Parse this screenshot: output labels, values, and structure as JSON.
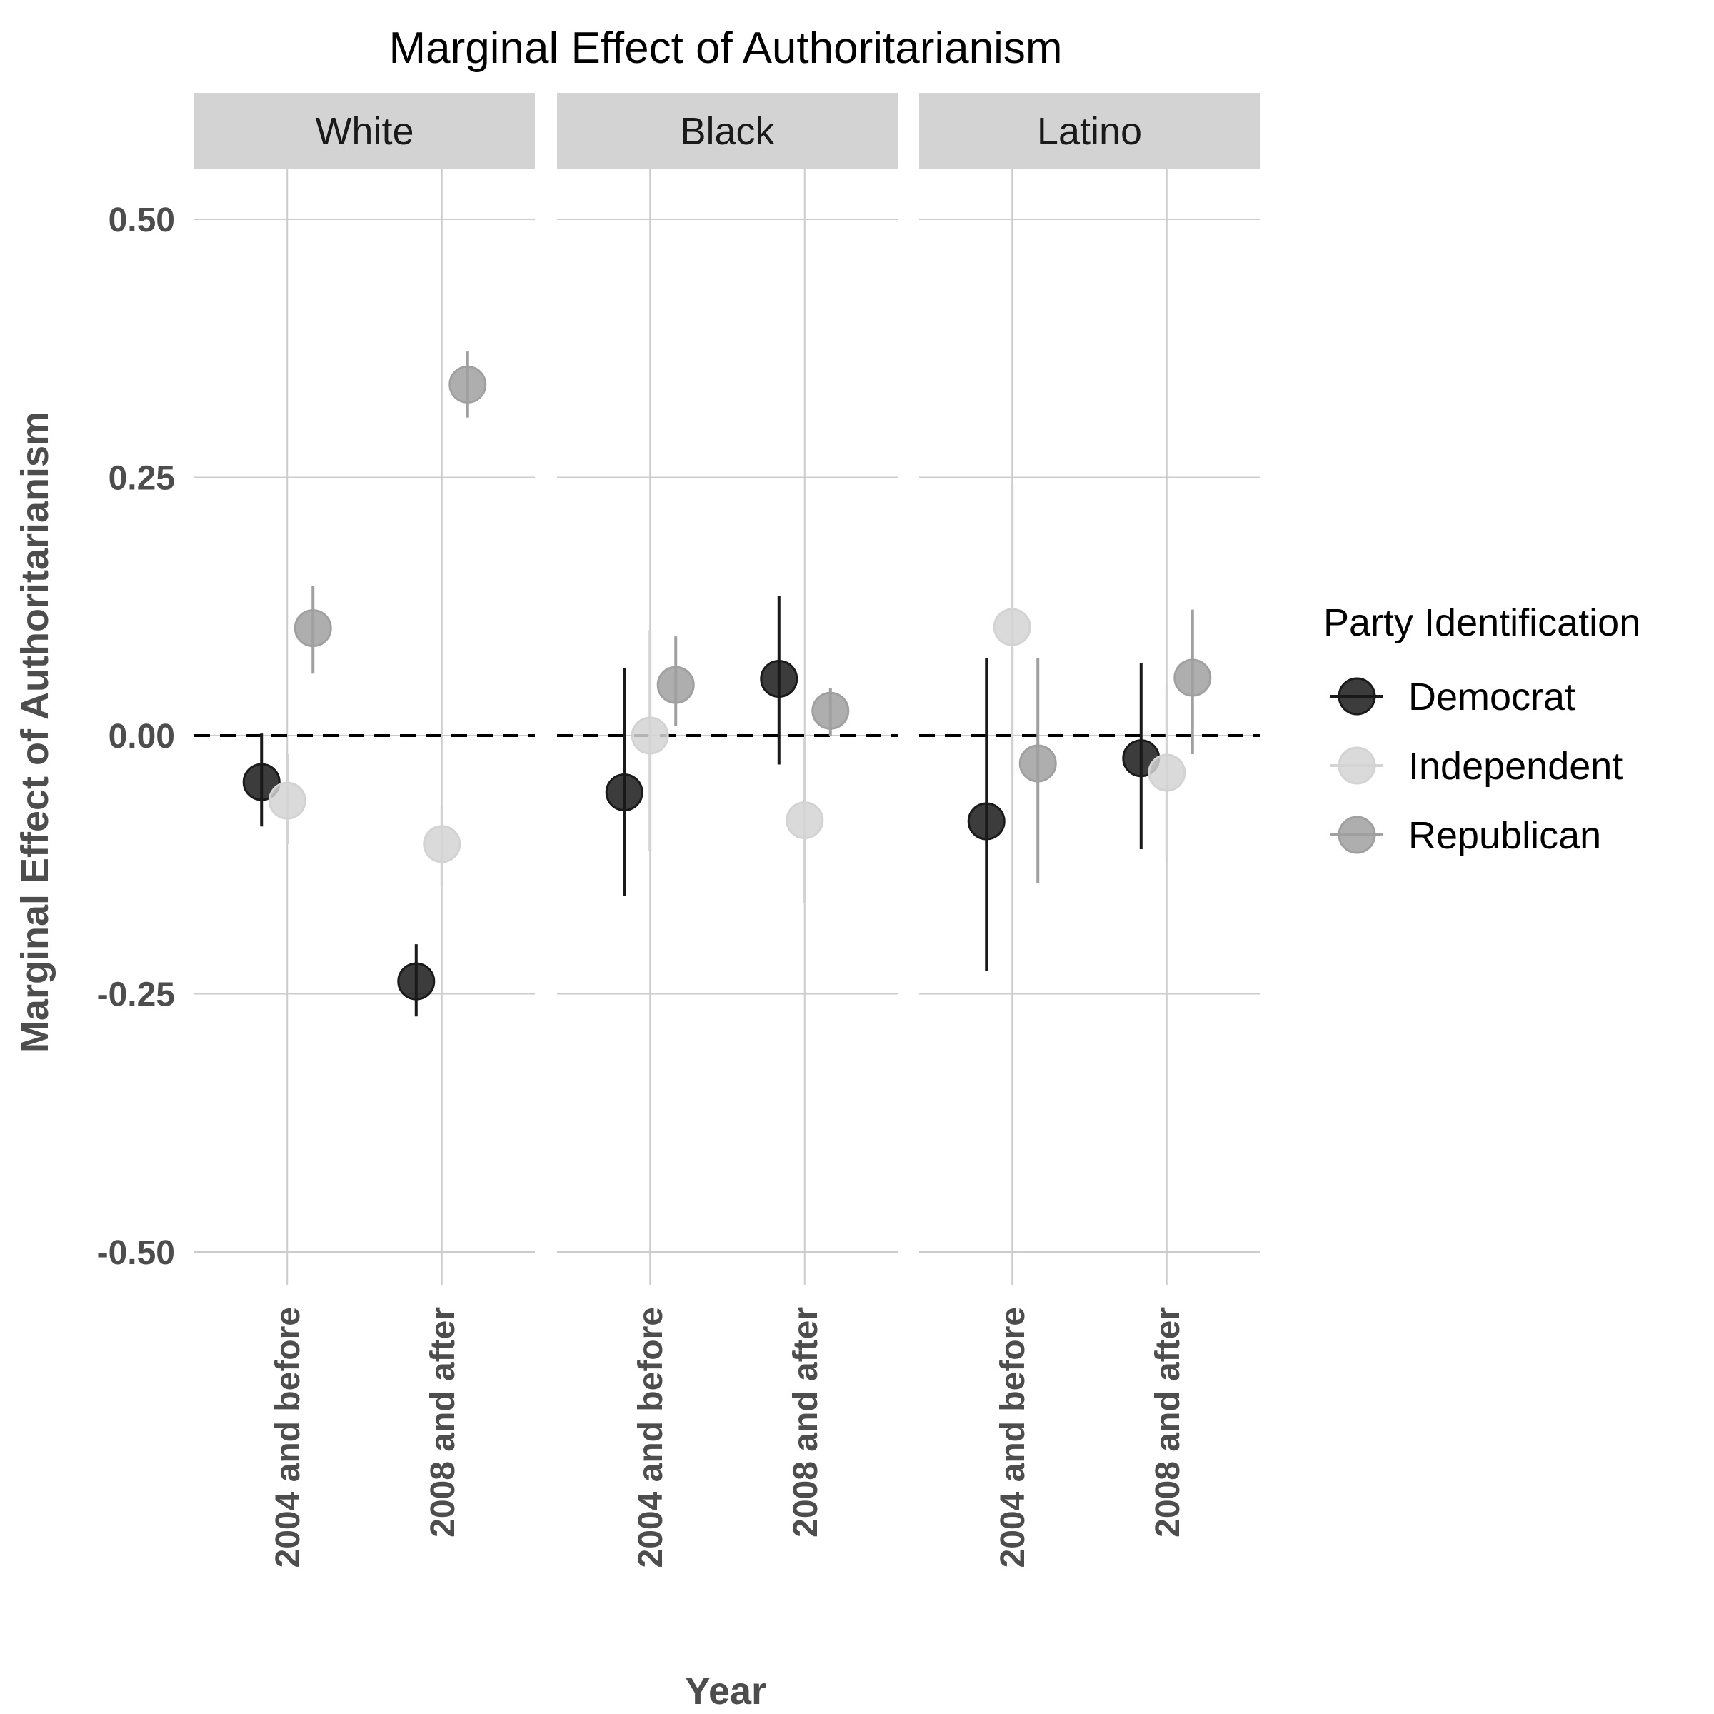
{
  "chart_data": {
    "type": "scatter",
    "title": "Marginal Effect of Authoritarianism",
    "xlabel": "Year",
    "ylabel": "Marginal Effect of Authoritarianism",
    "ylim": [
      -0.55,
      0.55
    ],
    "yticks": [
      -0.5,
      -0.25,
      0.0,
      0.25,
      0.5
    ],
    "ytick_labels": [
      "-0.50",
      "-0.25",
      "0.00",
      "0.25",
      "0.50"
    ],
    "categories": [
      "2004 and before",
      "2008 and after"
    ],
    "facets": [
      "White",
      "Black",
      "Latino"
    ],
    "reference_line": 0,
    "grid": true,
    "legend": {
      "title": "Party Identification",
      "position": "right"
    },
    "series": [
      {
        "name": "Democrat",
        "color": "#1a1a1a",
        "points": [
          {
            "facet": "White",
            "x": "2004 and before",
            "y": -0.045,
            "lo": -0.088,
            "hi": 0.002
          },
          {
            "facet": "White",
            "x": "2008 and after",
            "y": -0.238,
            "lo": -0.272,
            "hi": -0.202
          },
          {
            "facet": "Black",
            "x": "2004 and before",
            "y": -0.055,
            "lo": -0.155,
            "hi": 0.065
          },
          {
            "facet": "Black",
            "x": "2008 and after",
            "y": 0.055,
            "lo": -0.028,
            "hi": 0.135
          },
          {
            "facet": "Latino",
            "x": "2004 and before",
            "y": -0.083,
            "lo": -0.228,
            "hi": 0.075
          },
          {
            "facet": "Latino",
            "x": "2008 and after",
            "y": -0.022,
            "lo": -0.11,
            "hi": 0.07
          }
        ]
      },
      {
        "name": "Independent",
        "color": "#d3d3d3",
        "points": [
          {
            "facet": "White",
            "x": "2004 and before",
            "y": -0.063,
            "lo": -0.105,
            "hi": -0.018
          },
          {
            "facet": "White",
            "x": "2008 and after",
            "y": -0.105,
            "lo": -0.145,
            "hi": -0.068
          },
          {
            "facet": "Black",
            "x": "2004 and before",
            "y": 0.0,
            "lo": -0.112,
            "hi": 0.102
          },
          {
            "facet": "Black",
            "x": "2008 and after",
            "y": -0.082,
            "lo": -0.162,
            "hi": -0.002
          },
          {
            "facet": "Latino",
            "x": "2004 and before",
            "y": 0.105,
            "lo": -0.04,
            "hi": 0.243
          },
          {
            "facet": "Latino",
            "x": "2008 and after",
            "y": -0.036,
            "lo": -0.123,
            "hi": 0.048
          }
        ]
      },
      {
        "name": "Republican",
        "color": "#a0a0a0",
        "points": [
          {
            "facet": "White",
            "x": "2004 and before",
            "y": 0.104,
            "lo": 0.06,
            "hi": 0.145
          },
          {
            "facet": "White",
            "x": "2008 and after",
            "y": 0.34,
            "lo": 0.308,
            "hi": 0.372
          },
          {
            "facet": "Black",
            "x": "2004 and before",
            "y": 0.049,
            "lo": 0.009,
            "hi": 0.096
          },
          {
            "facet": "Black",
            "x": "2008 and after",
            "y": 0.024,
            "lo": 0.0,
            "hi": 0.046
          },
          {
            "facet": "Latino",
            "x": "2004 and before",
            "y": -0.027,
            "lo": -0.143,
            "hi": 0.075
          },
          {
            "facet": "Latino",
            "x": "2008 and after",
            "y": 0.056,
            "lo": -0.018,
            "hi": 0.122
          }
        ]
      }
    ]
  }
}
